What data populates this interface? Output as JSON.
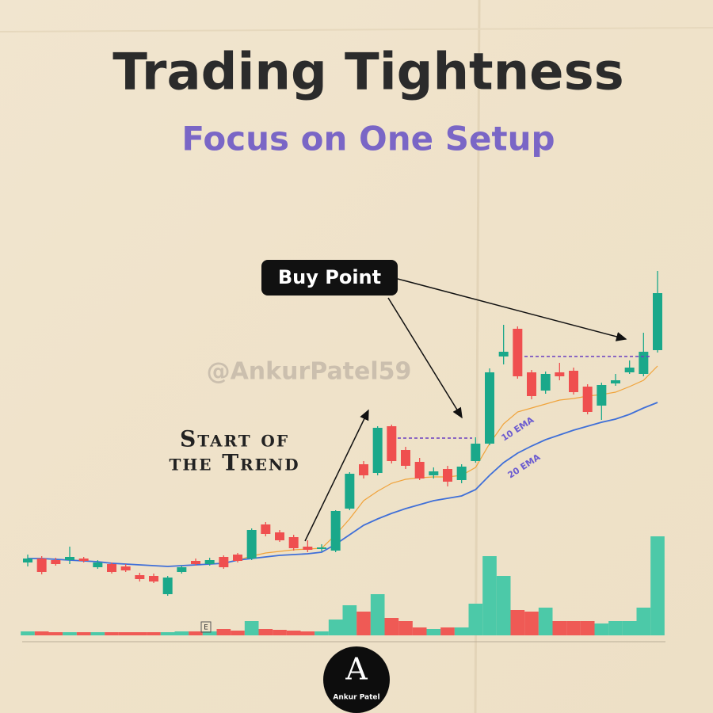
{
  "chart_data": {
    "type": "candlestick",
    "title": "Trading Tightness",
    "subtitle": "Focus on One Setup",
    "annotations": {
      "buy_point": "Buy Point",
      "handle": "@AnkurPatel59",
      "trend_line1": "Start of",
      "trend_line2": "the Trend",
      "event_marker": "E"
    },
    "up_color": "#1aa88a",
    "down_color": "#ef4f4f",
    "ylim": [
      40,
      480
    ],
    "open": [
      90,
      95,
      93,
      93,
      95,
      84,
      88,
      85,
      74,
      73,
      50,
      78,
      92,
      88,
      97,
      100,
      95,
      138,
      128,
      122,
      110,
      107,
      105,
      158,
      214,
      203,
      262,
      232,
      217,
      200,
      208,
      194,
      218,
      240,
      350,
      385,
      330,
      307,
      330,
      332,
      312,
      288,
      316,
      330,
      328,
      358
    ],
    "high": [
      100,
      98,
      96,
      110,
      97,
      93,
      90,
      88,
      77,
      76,
      73,
      86,
      95,
      96,
      99,
      102,
      133,
      141,
      131,
      125,
      118,
      113,
      156,
      204,
      218,
      262,
      264,
      236,
      222,
      210,
      212,
      214,
      248,
      335,
      390,
      388,
      333,
      331,
      342,
      336,
      315,
      317,
      328,
      345,
      380,
      458
    ],
    "low": [
      85,
      75,
      86,
      88,
      90,
      82,
      76,
      78,
      66,
      64,
      48,
      76,
      86,
      86,
      82,
      90,
      93,
      123,
      116,
      105,
      103,
      104,
      103,
      156,
      196,
      200,
      215,
      208,
      194,
      196,
      186,
      190,
      216,
      238,
      340,
      322,
      296,
      303,
      320,
      302,
      277,
      270,
      313,
      328,
      325,
      355
    ],
    "close": [
      95,
      78,
      88,
      97,
      92,
      90,
      78,
      80,
      69,
      66,
      71,
      84,
      88,
      93,
      84,
      92,
      131,
      126,
      118,
      108,
      106,
      109,
      155,
      202,
      200,
      260,
      218,
      212,
      196,
      205,
      192,
      211,
      240,
      330,
      356,
      325,
      300,
      328,
      325,
      305,
      280,
      314,
      320,
      336,
      356,
      430
    ],
    "lines": [
      {
        "name": "10 EMA",
        "color": "#f0a33a",
        "values": [
          null,
          null,
          null,
          null,
          null,
          null,
          null,
          null,
          null,
          null,
          null,
          null,
          null,
          null,
          89,
          93,
          98,
          102,
          104,
          106,
          107,
          108,
          125,
          145,
          168,
          180,
          190,
          195,
          197,
          198,
          198,
          200,
          210,
          240,
          265,
          280,
          285,
          290,
          295,
          297,
          300,
          302,
          305,
          312,
          320,
          338
        ]
      },
      {
        "name": "20 EMA",
        "color": "#3f6fd8",
        "values": [
          95,
          95,
          94,
          93,
          92,
          91,
          89,
          88,
          87,
          86,
          85,
          86,
          87,
          88,
          89,
          93,
          95,
          97,
          99,
          100,
          101,
          103,
          113,
          125,
          137,
          145,
          152,
          158,
          163,
          168,
          171,
          174,
          182,
          200,
          216,
          228,
          237,
          245,
          251,
          257,
          262,
          267,
          271,
          277,
          285,
          292
        ]
      }
    ],
    "volume": {
      "ylim": [
        0,
        130
      ],
      "values": [
        5,
        5,
        4,
        4,
        4,
        4,
        4,
        4,
        4,
        4,
        4,
        5,
        5,
        5,
        8,
        6,
        18,
        8,
        7,
        6,
        5,
        5,
        20,
        38,
        30,
        52,
        22,
        18,
        10,
        8,
        10,
        10,
        40,
        100,
        75,
        32,
        30,
        35,
        18,
        18,
        18,
        15,
        18,
        18,
        35,
        125
      ]
    }
  },
  "footer": {
    "logo": "A",
    "name": "Ankur Patel"
  }
}
